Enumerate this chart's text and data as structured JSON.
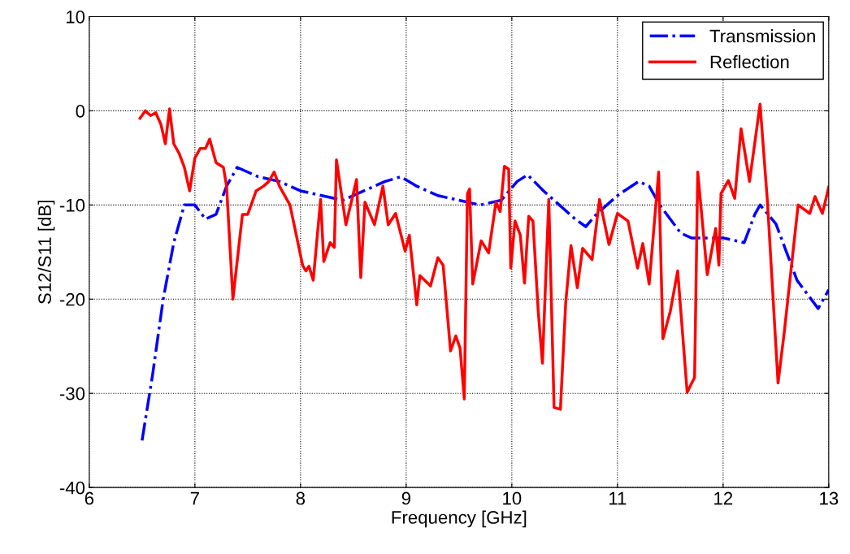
{
  "chart_data": {
    "type": "line",
    "xlabel": "Frequency [GHz]",
    "ylabel": "S12/S11 [dB]",
    "xlim": [
      6,
      13
    ],
    "xticks": [
      6,
      7,
      8,
      9,
      10,
      11,
      12,
      13
    ],
    "ylim": [
      -40,
      10
    ],
    "yticks": [
      -40,
      -30,
      -20,
      -10,
      0,
      10
    ],
    "grid": true,
    "legend": "top right",
    "series": [
      {
        "name": "Transmission",
        "color": "#0000ff",
        "line_style": "dashdot",
        "x": [
          6.5,
          6.6,
          6.7,
          6.8,
          6.9,
          7.0,
          7.1,
          7.2,
          7.3,
          7.4,
          7.6,
          7.8,
          8.0,
          8.2,
          8.4,
          8.6,
          8.8,
          8.95,
          9.1,
          9.3,
          9.5,
          9.7,
          9.9,
          10.05,
          10.15,
          10.3,
          10.45,
          10.6,
          10.7,
          10.8,
          11.0,
          11.2,
          11.3,
          11.4,
          11.6,
          11.7,
          11.9,
          12.0,
          12.2,
          12.3,
          12.35,
          12.5,
          12.6,
          12.7,
          12.8,
          12.9,
          13.0
        ],
        "values": [
          -35,
          -28,
          -20,
          -14,
          -10,
          -10,
          -11.5,
          -11,
          -8,
          -6,
          -7,
          -7.5,
          -8.5,
          -9,
          -9.5,
          -8.5,
          -7.5,
          -7,
          -8,
          -9,
          -9.5,
          -10,
          -9.5,
          -7.5,
          -6.8,
          -8.5,
          -10,
          -11.5,
          -12.3,
          -11,
          -9,
          -7.5,
          -8,
          -10,
          -13,
          -13.5,
          -13.5,
          -13.5,
          -14,
          -11,
          -10,
          -12,
          -15,
          -18,
          -19.5,
          -21,
          -19
        ]
      },
      {
        "name": "Reflection",
        "color": "#ff0000",
        "line_style": "solid",
        "x": [
          6.48,
          6.53,
          6.58,
          6.63,
          6.68,
          6.72,
          6.76,
          6.8,
          6.85,
          6.9,
          6.95,
          7.0,
          7.05,
          7.1,
          7.14,
          7.2,
          7.27,
          7.3,
          7.36,
          7.45,
          7.5,
          7.58,
          7.65,
          7.7,
          7.75,
          7.8,
          7.9,
          8.02,
          8.05,
          8.08,
          8.12,
          8.19,
          8.22,
          8.28,
          8.32,
          8.34,
          8.43,
          8.53,
          8.57,
          8.61,
          8.7,
          8.78,
          8.83,
          8.9,
          8.99,
          9.03,
          9.1,
          9.13,
          9.23,
          9.3,
          9.35,
          9.42,
          9.47,
          9.51,
          9.55,
          9.58,
          9.6,
          9.63,
          9.71,
          9.78,
          9.85,
          9.89,
          9.93,
          9.97,
          9.99,
          10.03,
          10.08,
          10.12,
          10.16,
          10.2,
          10.25,
          10.29,
          10.35,
          10.4,
          10.46,
          10.51,
          10.56,
          10.62,
          10.67,
          10.76,
          10.83,
          10.92,
          11.0,
          11.1,
          11.19,
          11.24,
          11.3,
          11.39,
          11.43,
          11.5,
          11.57,
          11.66,
          11.73,
          11.76,
          11.85,
          11.93,
          11.96,
          11.98,
          12.05,
          12.11,
          12.17,
          12.25,
          12.35,
          12.42,
          12.52,
          12.58,
          12.71,
          12.82,
          12.87,
          12.94,
          13.0
        ],
        "values": [
          -0.8,
          0,
          -0.5,
          -0.2,
          -1.5,
          -3.5,
          0.2,
          -3.5,
          -4.5,
          -6,
          -8.5,
          -5,
          -4,
          -4,
          -3,
          -5.5,
          -6,
          -8,
          -20,
          -11,
          -11,
          -8.5,
          -8,
          -7.5,
          -6.5,
          -8,
          -10,
          -16.4,
          -17,
          -16.5,
          -18,
          -9.4,
          -16,
          -14,
          -14.5,
          -5.2,
          -12.1,
          -7.3,
          -17.7,
          -9.7,
          -12.1,
          -8,
          -12.1,
          -10.9,
          -14.9,
          -13.2,
          -20.6,
          -17.5,
          -18.6,
          -15.6,
          -16.4,
          -25.5,
          -23.9,
          -25.2,
          -30.6,
          -8.8,
          -8.3,
          -18.4,
          -13.8,
          -15.1,
          -9.7,
          -10.7,
          -5.9,
          -6.2,
          -16.7,
          -11.7,
          -13.2,
          -18.3,
          -11.2,
          -11.7,
          -21.3,
          -26.8,
          -9.4,
          -31.5,
          -31.7,
          -20.4,
          -14.3,
          -18.8,
          -14.6,
          -15.8,
          -9.4,
          -14.2,
          -10.9,
          -11.7,
          -16.7,
          -14.1,
          -18.4,
          -6.5,
          -24.2,
          -21.3,
          -17,
          -29.9,
          -28.3,
          -6.5,
          -17.4,
          -12.5,
          -16.4,
          -8.8,
          -7.4,
          -9.3,
          -1.9,
          -7.5,
          0.7,
          -9.7,
          -28.9,
          -23.4,
          -10,
          -10.9,
          -9.1,
          -10.9,
          -8.1
        ]
      }
    ]
  }
}
